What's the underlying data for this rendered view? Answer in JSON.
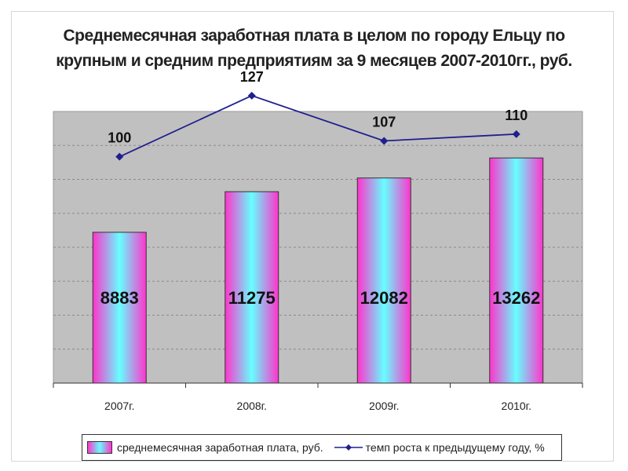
{
  "chart_data": {
    "type": "bar",
    "title_lines": [
      "Среднемесячная заработная плата в целом по городу Ельцу по",
      "крупным и средним предприятиям за 9 месяцев 2007-2010гг., руб."
    ],
    "categories": [
      "2007г.",
      "2008г.",
      "2009г.",
      "2010г."
    ],
    "series": [
      {
        "name": "среднемесячная заработная плата, руб.",
        "type": "bar",
        "values": [
          8883,
          11275,
          12082,
          13262
        ]
      },
      {
        "name": "темп роста к предыдущему году, %",
        "type": "line",
        "values": [
          100,
          127,
          107,
          110
        ]
      }
    ],
    "bar_axis_range": [
      0,
      16000
    ],
    "line_axis_range": [
      0,
      120
    ],
    "grid": true,
    "legend_position": "bottom",
    "colors": {
      "plot_background": "#c0c0c0",
      "bar_gradient_edge": "#ff33cc",
      "bar_gradient_center": "#66ffff",
      "line": "#1f1f8f",
      "gridline": "#8a8a8a"
    }
  }
}
